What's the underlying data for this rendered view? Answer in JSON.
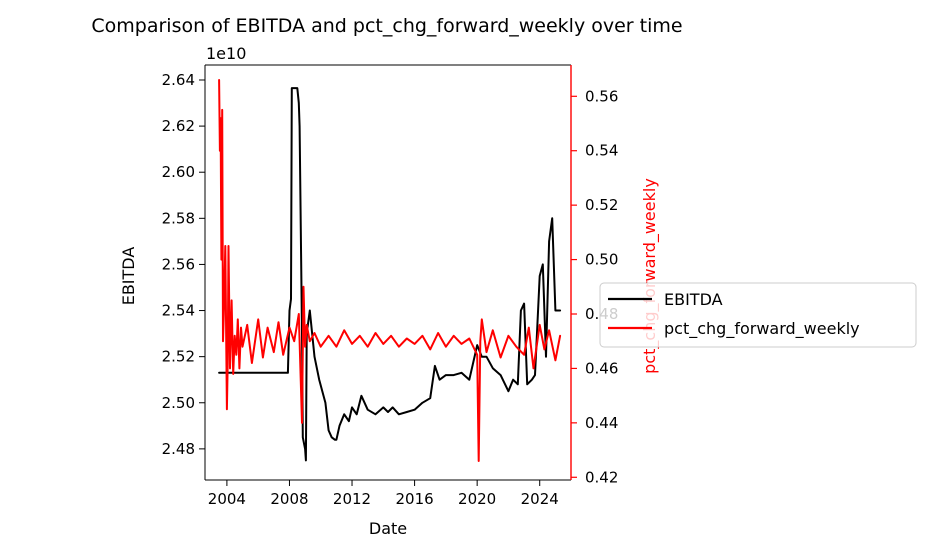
{
  "chart_data": {
    "type": "line",
    "title": "Comparison of EBITDA and pct_chg_forward_weekly over time",
    "xlabel": "Date",
    "ylabel_left": "EBITDA",
    "ylabel_right": "pct_chg_forward_weekly",
    "left_axis_offset_label": "1e10",
    "xlim": [
      2002.6,
      2026.0
    ],
    "ylim_left": [
      2.4665,
      2.6465
    ],
    "ylim_right": [
      0.419,
      0.5715
    ],
    "x_ticks": [
      2004,
      2008,
      2012,
      2016,
      2020,
      2024
    ],
    "x_tick_labels": [
      "2004",
      "2008",
      "2012",
      "2016",
      "2020",
      "2024"
    ],
    "y_left_ticks": [
      2.48,
      2.5,
      2.52,
      2.54,
      2.56,
      2.58,
      2.6,
      2.62,
      2.64
    ],
    "y_left_tick_labels": [
      "2.48",
      "2.50",
      "2.52",
      "2.54",
      "2.56",
      "2.58",
      "2.60",
      "2.62",
      "2.64"
    ],
    "y_right_ticks": [
      0.42,
      0.44,
      0.46,
      0.48,
      0.5,
      0.52,
      0.54,
      0.56
    ],
    "y_right_tick_labels": [
      "0.42",
      "0.44",
      "0.46",
      "0.48",
      "0.50",
      "0.52",
      "0.54",
      "0.56"
    ],
    "grid": false,
    "legend_position": "center-right-outside",
    "series": [
      {
        "name": "EBITDA",
        "axis": "left",
        "color": "#000000",
        "x": [
          2003.5,
          2005.0,
          2007.0,
          2007.9,
          2008.0,
          2008.1,
          2008.15,
          2008.5,
          2008.6,
          2008.65,
          2008.8,
          2008.85,
          2009.0,
          2009.05,
          2009.1,
          2009.3,
          2009.6,
          2009.9,
          2010.1,
          2010.3,
          2010.5,
          2010.7,
          2010.9,
          2011.0,
          2011.2,
          2011.5,
          2011.8,
          2012.0,
          2012.3,
          2012.6,
          2013.0,
          2013.5,
          2014.0,
          2014.3,
          2014.6,
          2015.0,
          2015.5,
          2016.0,
          2016.5,
          2017.0,
          2017.3,
          2017.6,
          2018.0,
          2018.5,
          2019.0,
          2019.5,
          2020.0,
          2020.3,
          2020.6,
          2021.0,
          2021.5,
          2022.0,
          2022.3,
          2022.6,
          2022.8,
          2023.0,
          2023.2,
          2023.5,
          2023.7,
          2024.0,
          2024.2,
          2024.4,
          2024.6,
          2024.8,
          2025.0,
          2025.3
        ],
        "y": [
          2.513,
          2.513,
          2.513,
          2.513,
          2.54,
          2.545,
          2.6365,
          2.6365,
          2.63,
          2.62,
          2.53,
          2.485,
          2.48,
          2.475,
          2.53,
          2.54,
          2.52,
          2.51,
          2.505,
          2.5,
          2.488,
          2.485,
          2.484,
          2.484,
          2.49,
          2.495,
          2.492,
          2.498,
          2.495,
          2.503,
          2.497,
          2.495,
          2.498,
          2.496,
          2.498,
          2.495,
          2.496,
          2.497,
          2.5,
          2.502,
          2.516,
          2.51,
          2.512,
          2.512,
          2.513,
          2.51,
          2.525,
          2.52,
          2.52,
          2.515,
          2.512,
          2.505,
          2.51,
          2.508,
          2.54,
          2.543,
          2.508,
          2.51,
          2.512,
          2.555,
          2.56,
          2.52,
          2.57,
          2.58,
          2.54,
          2.54
        ]
      },
      {
        "name": "pct_chg_forward_weekly",
        "axis": "right",
        "color": "#ff0000",
        "x": [
          2003.5,
          2003.55,
          2003.6,
          2003.65,
          2003.7,
          2003.75,
          2003.8,
          2003.9,
          2004.0,
          2004.05,
          2004.1,
          2004.2,
          2004.3,
          2004.4,
          2004.5,
          2004.6,
          2004.7,
          2004.8,
          2004.9,
          2005.0,
          2005.3,
          2005.6,
          2006.0,
          2006.3,
          2006.6,
          2007.0,
          2007.3,
          2007.6,
          2008.0,
          2008.3,
          2008.6,
          2008.8,
          2008.9,
          2009.0,
          2009.1,
          2009.3,
          2009.6,
          2010.0,
          2010.5,
          2011.0,
          2011.5,
          2012.0,
          2012.5,
          2013.0,
          2013.5,
          2014.0,
          2014.5,
          2015.0,
          2015.5,
          2016.0,
          2016.5,
          2017.0,
          2017.5,
          2018.0,
          2018.5,
          2019.0,
          2019.5,
          2020.0,
          2020.1,
          2020.2,
          2020.3,
          2020.6,
          2021.0,
          2021.5,
          2022.0,
          2022.5,
          2023.0,
          2023.3,
          2023.6,
          2024.0,
          2024.3,
          2024.6,
          2025.0,
          2025.3
        ],
        "y": [
          0.566,
          0.54,
          0.552,
          0.5,
          0.555,
          0.47,
          0.48,
          0.505,
          0.445,
          0.462,
          0.505,
          0.46,
          0.485,
          0.458,
          0.472,
          0.465,
          0.478,
          0.46,
          0.475,
          0.468,
          0.476,
          0.462,
          0.478,
          0.464,
          0.475,
          0.466,
          0.477,
          0.465,
          0.475,
          0.47,
          0.48,
          0.44,
          0.49,
          0.468,
          0.476,
          0.47,
          0.473,
          0.468,
          0.472,
          0.468,
          0.474,
          0.469,
          0.472,
          0.468,
          0.473,
          0.469,
          0.472,
          0.468,
          0.471,
          0.469,
          0.472,
          0.467,
          0.473,
          0.468,
          0.472,
          0.469,
          0.471,
          0.465,
          0.426,
          0.47,
          0.478,
          0.466,
          0.474,
          0.464,
          0.472,
          0.468,
          0.465,
          0.475,
          0.46,
          0.476,
          0.467,
          0.474,
          0.463,
          0.472
        ]
      }
    ]
  }
}
